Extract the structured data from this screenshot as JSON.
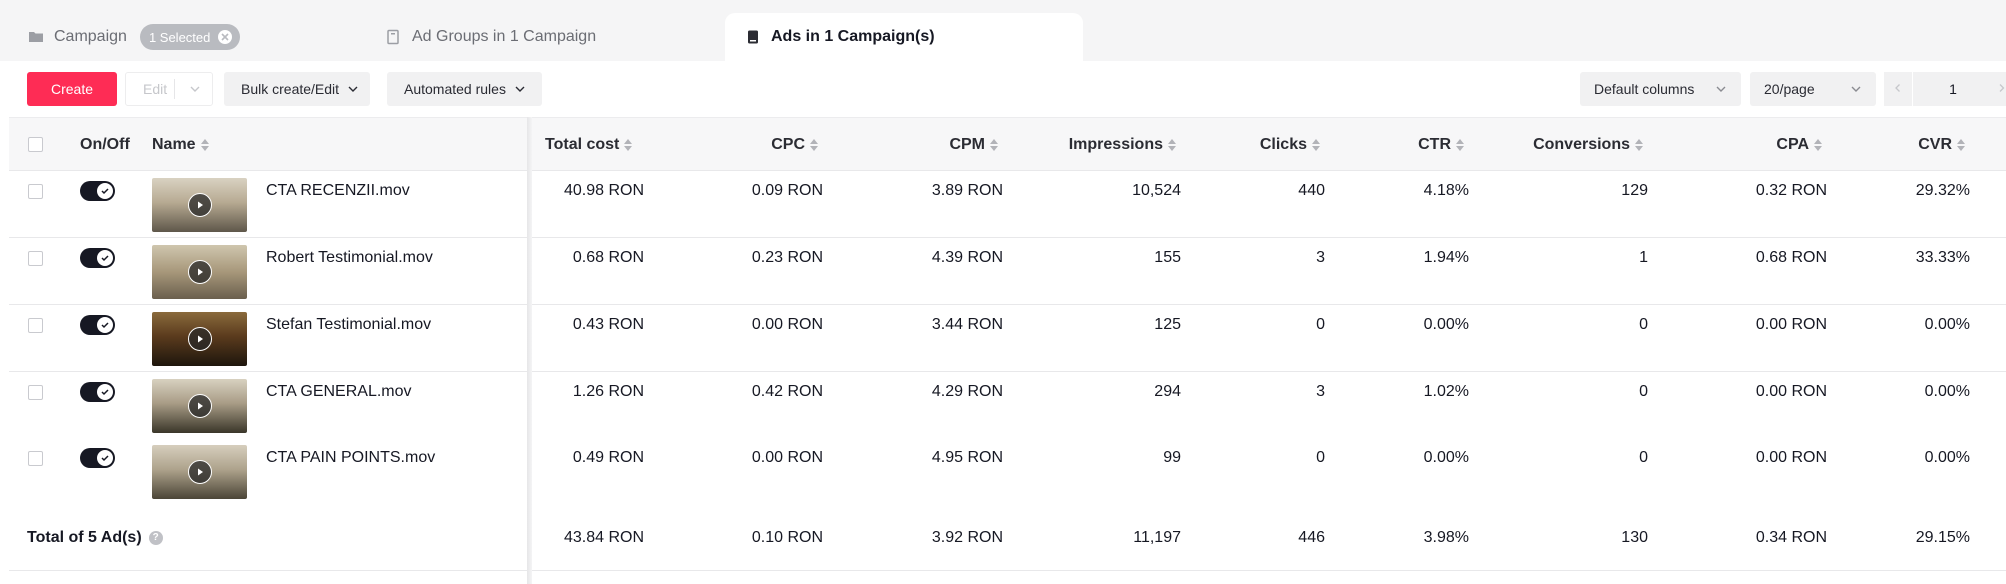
{
  "tabs": {
    "campaign": {
      "label": "Campaign",
      "badge": "1 Selected",
      "icon": "folder-icon"
    },
    "adgroups": {
      "label": "Ad Groups in 1 Campaign",
      "icon": "adgroup-icon"
    },
    "ads": {
      "label": "Ads in 1 Campaign(s)",
      "icon": "ad-icon"
    }
  },
  "toolbar": {
    "create": "Create",
    "edit": "Edit",
    "bulk": "Bulk create/Edit",
    "rules": "Automated rules",
    "columns": "Default columns",
    "page_size": "20/page",
    "page": "1"
  },
  "colors": {
    "accent": "#fe2c55",
    "toggle_on": "#161823"
  },
  "columns": [
    "On/Off",
    "Name",
    "Total cost",
    "CPC",
    "CPM",
    "Impressions",
    "Clicks",
    "CTR",
    "Conversions",
    "CPA",
    "CVR"
  ],
  "rows": [
    {
      "status": "on",
      "name": "CTA RECENZII.mov",
      "total_cost": "40.98 RON",
      "cpc": "0.09 RON",
      "cpm": "3.89 RON",
      "impressions": "10,524",
      "clicks": "440",
      "ctr": "4.18%",
      "conversions": "129",
      "cpa": "0.32 RON",
      "cvr": "29.32%"
    },
    {
      "status": "on",
      "name": "Robert Testimonial.mov",
      "total_cost": "0.68 RON",
      "cpc": "0.23 RON",
      "cpm": "4.39 RON",
      "impressions": "155",
      "clicks": "3",
      "ctr": "1.94%",
      "conversions": "1",
      "cpa": "0.68 RON",
      "cvr": "33.33%"
    },
    {
      "status": "on",
      "name": "Stefan Testimonial.mov",
      "total_cost": "0.43 RON",
      "cpc": "0.00 RON",
      "cpm": "3.44 RON",
      "impressions": "125",
      "clicks": "0",
      "ctr": "0.00%",
      "conversions": "0",
      "cpa": "0.00 RON",
      "cvr": "0.00%"
    },
    {
      "status": "on",
      "name": "CTA GENERAL.mov",
      "total_cost": "1.26 RON",
      "cpc": "0.42 RON",
      "cpm": "4.29 RON",
      "impressions": "294",
      "clicks": "3",
      "ctr": "1.02%",
      "conversions": "0",
      "cpa": "0.00 RON",
      "cvr": "0.00%"
    },
    {
      "status": "on",
      "name": "CTA PAIN POINTS.mov",
      "total_cost": "0.49 RON",
      "cpc": "0.00 RON",
      "cpm": "4.95 RON",
      "impressions": "99",
      "clicks": "0",
      "ctr": "0.00%",
      "conversions": "0",
      "cpa": "0.00 RON",
      "cvr": "0.00%"
    }
  ],
  "total": {
    "label": "Total of 5 Ad(s)",
    "help": "?",
    "total_cost": "43.84 RON",
    "cpc": "0.10 RON",
    "cpm": "3.92 RON",
    "impressions": "11,197",
    "clicks": "446",
    "ctr": "3.98%",
    "conversions": "130",
    "cpa": "0.34 RON",
    "cvr": "29.15%"
  }
}
